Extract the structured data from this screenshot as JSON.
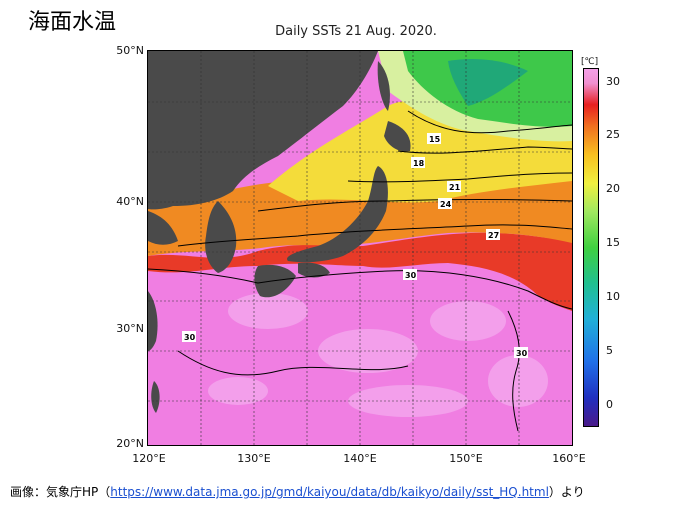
{
  "heading": "海面水温",
  "map": {
    "title": "Daily SSTs 21 Aug. 2020.",
    "lat_labels": [
      "50°N",
      "40°N",
      "30°N",
      "20°N"
    ],
    "lon_labels": [
      "120°E",
      "130°E",
      "140°E",
      "150°E",
      "160°E"
    ],
    "isotherm_labels": [
      "15",
      "18",
      "21",
      "24",
      "27",
      "30",
      "30",
      "30"
    ]
  },
  "colorbar": {
    "unit": "[℃]",
    "ticks": [
      "30",
      "25",
      "20",
      "15",
      "10",
      "5",
      "0"
    ]
  },
  "source": {
    "prefix": "画像：気象庁HP（",
    "url": "https://www.data.jma.go.jp/gmd/kaiyou/data/db/kaikyo/daily/sst_HQ.html",
    "suffix": "）より"
  }
}
